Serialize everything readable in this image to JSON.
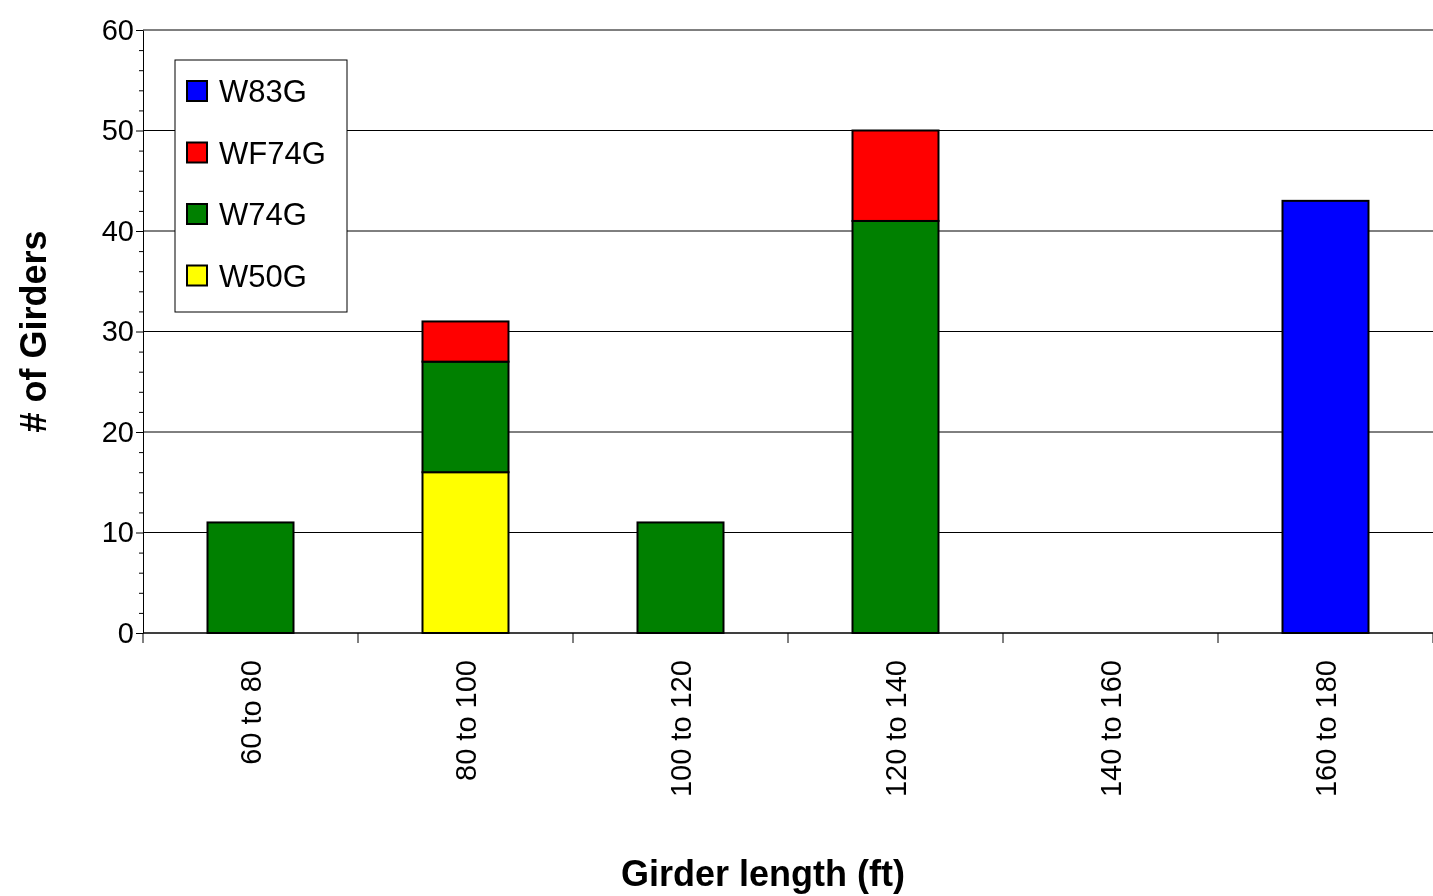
{
  "chart_data": {
    "type": "bar",
    "stacked": true,
    "xlabel": "Girder length (ft)",
    "ylabel": "# of Girders",
    "categories": [
      "60 to 80",
      "80 to 100",
      "100 to 120",
      "120 to 140",
      "140 to 160",
      "160 to 180"
    ],
    "series": [
      {
        "name": "W50G",
        "color": "#ffff00",
        "values": [
          null,
          16,
          null,
          null,
          null,
          null
        ]
      },
      {
        "name": "W74G",
        "color": "#008000",
        "values": [
          11,
          11,
          11,
          41,
          null,
          null
        ]
      },
      {
        "name": "WF74G",
        "color": "#ff0000",
        "values": [
          null,
          4,
          null,
          9,
          null,
          null
        ]
      },
      {
        "name": "W83G",
        "color": "#0000ff",
        "values": [
          null,
          null,
          null,
          null,
          null,
          43
        ]
      }
    ],
    "ylim": [
      0,
      60
    ],
    "yticks": [
      0,
      {
        "value": 2,
        "label": null
      },
      {
        "value": 4,
        "label": null
      },
      {
        "value": 6,
        "label": null
      },
      {
        "value": 8,
        "label": null
      },
      10,
      {
        "value": 12,
        "label": null
      },
      {
        "value": 14,
        "label": null
      },
      {
        "value": 16,
        "label": null
      },
      {
        "value": 18,
        "label": null
      },
      20,
      {
        "value": 22,
        "label": null
      },
      {
        "value": 24,
        "label": null
      },
      {
        "value": 26,
        "label": null
      },
      {
        "value": 28,
        "label": null
      },
      30,
      {
        "value": 32,
        "label": null
      },
      {
        "value": 34,
        "label": null
      },
      {
        "value": 36,
        "label": null
      },
      {
        "value": 38,
        "label": null
      },
      40,
      {
        "value": 42,
        "label": null
      },
      {
        "value": 44,
        "label": null
      },
      {
        "value": 46,
        "label": null
      },
      {
        "value": 48,
        "label": null
      },
      50,
      {
        "value": 52,
        "label": null
      },
      {
        "value": 54,
        "label": null
      },
      {
        "value": 56,
        "label": null
      },
      {
        "value": 58,
        "label": null
      },
      60
    ],
    "grid": "y",
    "legend": "top left"
  }
}
